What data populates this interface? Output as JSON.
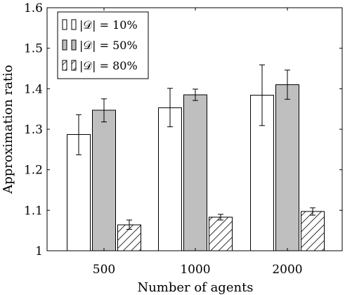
{
  "chart_data": {
    "type": "bar",
    "xlabel": "Number of agents",
    "ylabel": "Approximation ratio",
    "categories": [
      "500",
      "1000",
      "2000"
    ],
    "ylim": [
      1,
      1.6
    ],
    "yticks": [
      "1",
      "1.1",
      "1.2",
      "1.3",
      "1.4",
      "1.5",
      "1.6"
    ],
    "grid": false,
    "legend_position": "top-left",
    "series": [
      {
        "name": "|𝒟| = 10%",
        "pattern": "white",
        "values": [
          1.287,
          1.353,
          1.384
        ],
        "error_low": [
          1.237,
          1.306,
          1.309
        ],
        "error_high": [
          1.336,
          1.401,
          1.459
        ]
      },
      {
        "name": "|𝒟| = 50%",
        "pattern": "gray",
        "values": [
          1.347,
          1.385,
          1.41
        ],
        "error_low": [
          1.318,
          1.371,
          1.374
        ],
        "error_high": [
          1.375,
          1.399,
          1.446
        ]
      },
      {
        "name": "|𝒟| = 80%",
        "pattern": "hatched",
        "values": [
          1.064,
          1.083,
          1.097
        ],
        "error_low": [
          1.053,
          1.076,
          1.088
        ],
        "error_high": [
          1.076,
          1.09,
          1.106
        ]
      }
    ],
    "colors": {
      "gray_fill": "#bfbfbf",
      "white_fill": "#ffffff",
      "stroke": "#000000"
    }
  }
}
